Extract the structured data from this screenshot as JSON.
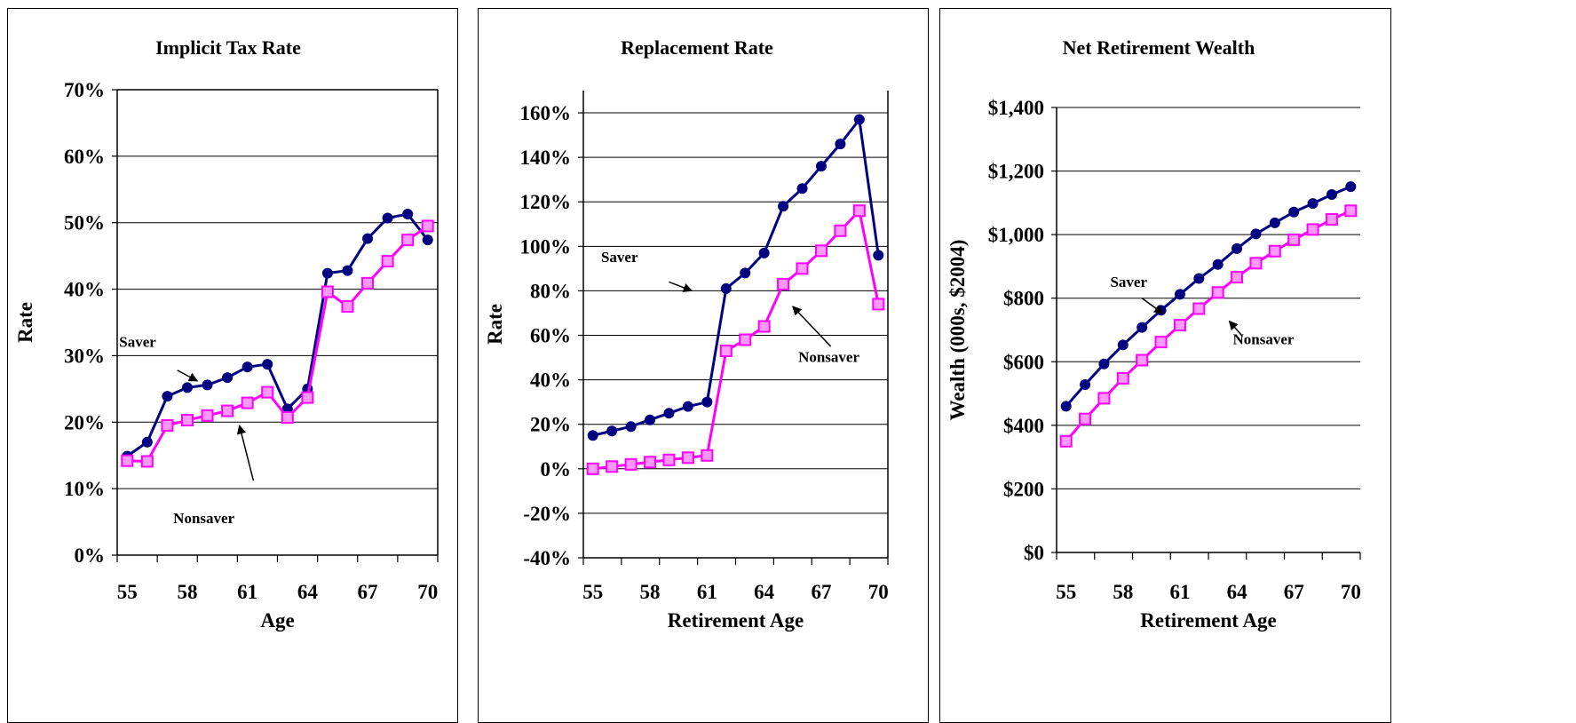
{
  "colors": {
    "saver": "#000080",
    "nonsaver": "#ff00ff",
    "nonsaver_fill": "#ff99ff"
  },
  "chart_data": [
    {
      "type": "line",
      "title": "Implicit Tax Rate",
      "xlabel": "Age",
      "ylabel": "Rate",
      "ylim": [
        0,
        0.7
      ],
      "y_ticks": [
        0,
        0.1,
        0.2,
        0.3,
        0.4,
        0.5,
        0.6,
        0.7
      ],
      "y_tick_labels": [
        "0%",
        "10%",
        "20%",
        "30%",
        "40%",
        "50%",
        "60%",
        "70%"
      ],
      "x_tick_labels": [
        "55",
        "58",
        "61",
        "64",
        "67",
        "70"
      ],
      "grid": true,
      "x": [
        55,
        56,
        57,
        58,
        59,
        60,
        61,
        62,
        63,
        64,
        65,
        66,
        67,
        68,
        69,
        70
      ],
      "series": [
        {
          "name": "Saver",
          "values": [
            0.149,
            0.17,
            0.239,
            0.252,
            0.256,
            0.267,
            0.283,
            0.287,
            0.22,
            0.25,
            0.424,
            0.428,
            0.476,
            0.507,
            0.513,
            0.474
          ]
        },
        {
          "name": "Nonsaver",
          "values": [
            0.142,
            0.141,
            0.195,
            0.203,
            0.21,
            0.217,
            0.229,
            0.245,
            0.207,
            0.237,
            0.396,
            0.374,
            0.409,
            0.442,
            0.474,
            0.495
          ]
        }
      ],
      "annotations": [
        {
          "text": "Saver",
          "at": [
            54.6,
            0.313
          ],
          "label_anchor": "start",
          "arrow_to": [
            58.5,
            0.262
          ],
          "arrow_from": [
            57.5,
            0.278
          ]
        },
        {
          "text": "Nonsaver",
          "at": [
            57.3,
            0.048
          ],
          "label_anchor": "start",
          "arrow_to": [
            60.6,
            0.195
          ],
          "arrow_from": [
            61.3,
            0.112
          ]
        }
      ]
    },
    {
      "type": "line",
      "title": "Replacement Rate",
      "xlabel": "Retirement Age",
      "ylabel": "Rate",
      "ylim": [
        -0.4,
        1.7
      ],
      "y_ticks": [
        -0.4,
        -0.2,
        0,
        0.2,
        0.4,
        0.6,
        0.8,
        1.0,
        1.2,
        1.4,
        1.6
      ],
      "y_tick_labels": [
        "-40%",
        "-20%",
        "0%",
        "20%",
        "40%",
        "60%",
        "80%",
        "100%",
        "120%",
        "140%",
        "160%"
      ],
      "x_tick_labels": [
        "55",
        "58",
        "61",
        "64",
        "67",
        "70"
      ],
      "grid": true,
      "x": [
        55,
        56,
        57,
        58,
        59,
        60,
        61,
        62,
        63,
        64,
        65,
        66,
        67,
        68,
        69,
        70
      ],
      "series": [
        {
          "name": "Saver",
          "values": [
            0.15,
            0.17,
            0.19,
            0.22,
            0.25,
            0.28,
            0.3,
            0.81,
            0.88,
            0.97,
            1.18,
            1.26,
            1.36,
            1.46,
            1.57,
            0.96
          ]
        },
        {
          "name": "Nonsaver",
          "values": [
            0.0,
            0.01,
            0.02,
            0.03,
            0.04,
            0.05,
            0.06,
            0.53,
            0.58,
            0.64,
            0.83,
            0.9,
            0.98,
            1.07,
            1.16,
            0.74
          ]
        }
      ],
      "annotations": [
        {
          "text": "Saver",
          "at": [
            56.4,
            0.93
          ],
          "label_anchor": "middle",
          "arrow_to": [
            60.2,
            0.8
          ],
          "arrow_from": [
            59.0,
            0.84
          ]
        },
        {
          "text": "Nonsaver",
          "at": [
            67.4,
            0.48
          ],
          "label_anchor": "middle",
          "arrow_to": [
            65.5,
            0.73
          ],
          "arrow_from": [
            67.5,
            0.55
          ]
        }
      ]
    },
    {
      "type": "line",
      "title": "Net Retirement Wealth",
      "xlabel": "Retirement Age",
      "ylabel": "Wealth (000s, $2004)",
      "ylim": [
        0,
        1400
      ],
      "y_ticks": [
        0,
        200,
        400,
        600,
        800,
        1000,
        1200,
        1400
      ],
      "y_tick_labels": [
        "$0",
        "$200",
        "$400",
        "$600",
        "$800",
        "$1,000",
        "$1,200",
        "$1,400"
      ],
      "x_tick_labels": [
        "55",
        "58",
        "61",
        "64",
        "67",
        "70"
      ],
      "grid": true,
      "x": [
        55,
        56,
        57,
        58,
        59,
        60,
        61,
        62,
        63,
        64,
        65,
        66,
        67,
        68,
        69,
        70
      ],
      "series": [
        {
          "name": "Saver",
          "values": [
            460,
            528,
            593,
            653,
            708,
            762,
            812,
            862,
            906,
            956,
            1002,
            1037,
            1071,
            1098,
            1126,
            1151
          ]
        },
        {
          "name": "Nonsaver",
          "values": [
            350,
            420,
            485,
            548,
            605,
            662,
            715,
            767,
            818,
            866,
            910,
            948,
            984,
            1016,
            1048,
            1075
          ]
        }
      ],
      "annotations": [
        {
          "text": "Saver",
          "at": [
            58.3,
            835
          ],
          "label_anchor": "middle",
          "arrow_to": [
            60.1,
            752
          ],
          "arrow_from": [
            59.0,
            800
          ]
        },
        {
          "text": "Nonsaver",
          "at": [
            65.4,
            655
          ],
          "label_anchor": "middle",
          "arrow_to": [
            63.6,
            728
          ],
          "arrow_from": [
            64.3,
            680
          ]
        }
      ]
    }
  ]
}
